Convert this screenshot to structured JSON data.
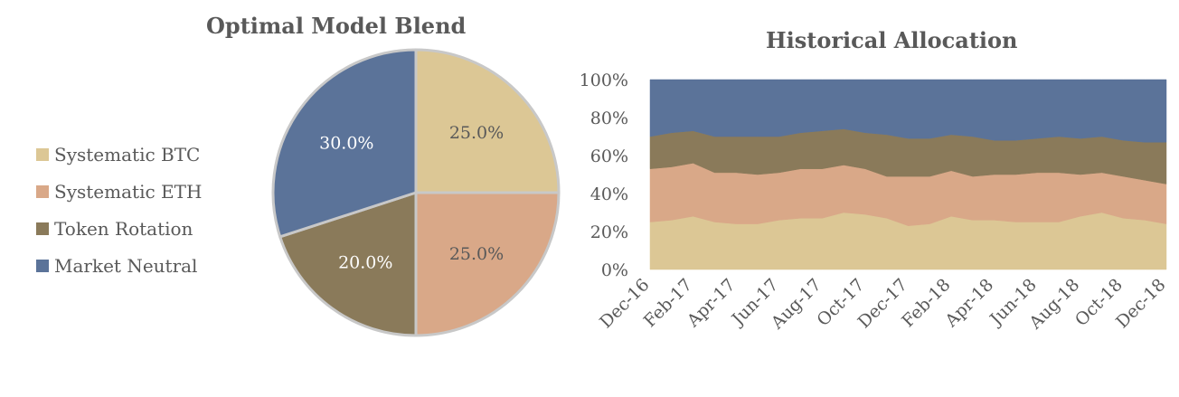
{
  "chart_data": [
    {
      "type": "pie",
      "title": "Optimal Model Blend",
      "legend_placement": "left",
      "categories": [
        "Systematic BTC",
        "Systematic ETH",
        "Token Rotation",
        "Market Neutral"
      ],
      "values": [
        25.0,
        25.0,
        20.0,
        30.0
      ],
      "data_labels": [
        "25.0%",
        "25.0%",
        "20.0%",
        "30.0%"
      ],
      "colors": [
        "#dcc795",
        "#d9a888",
        "#8a7a5a",
        "#5b7399"
      ]
    },
    {
      "type": "area",
      "stacked": "percent",
      "title": "Historical Allocation",
      "grid": false,
      "legend": "none",
      "x_tick_labels": [
        "Dec-16",
        "Feb-17",
        "Apr-17",
        "Jun-17",
        "Aug-17",
        "Oct-17",
        "Dec-17",
        "Feb-18",
        "Apr-18",
        "Jun-18",
        "Aug-18",
        "Oct-18",
        "Dec-18"
      ],
      "y_tick_labels": [
        "0%",
        "20%",
        "40%",
        "60%",
        "80%",
        "100%"
      ],
      "ylim": [
        0,
        100
      ],
      "x": [
        "Dec-16",
        "Jan-17",
        "Feb-17",
        "Mar-17",
        "Apr-17",
        "May-17",
        "Jun-17",
        "Jul-17",
        "Aug-17",
        "Sep-17",
        "Oct-17",
        "Nov-17",
        "Dec-17",
        "Jan-18",
        "Feb-18",
        "Mar-18",
        "Apr-18",
        "May-18",
        "Jun-18",
        "Jul-18",
        "Aug-18",
        "Sep-18",
        "Oct-18",
        "Nov-18",
        "Dec-18"
      ],
      "series": [
        {
          "color": "#dcc795",
          "values": [
            25,
            26,
            28,
            25,
            24,
            24,
            26,
            27,
            27,
            30,
            29,
            27,
            23,
            24,
            28,
            26,
            26,
            25,
            25,
            25,
            28,
            30,
            27,
            26,
            24
          ]
        },
        {
          "color": "#d9a888",
          "values": [
            28,
            28,
            28,
            26,
            27,
            26,
            25,
            26,
            26,
            25,
            24,
            22,
            26,
            25,
            24,
            23,
            24,
            25,
            26,
            26,
            22,
            21,
            22,
            21,
            21
          ]
        },
        {
          "color": "#8a7a5a",
          "values": [
            17,
            18,
            17,
            19,
            19,
            20,
            19,
            19,
            20,
            19,
            19,
            22,
            20,
            20,
            19,
            21,
            18,
            18,
            18,
            19,
            19,
            19,
            19,
            20,
            22
          ]
        },
        {
          "color": "#5b7399",
          "values": [
            30,
            28,
            27,
            30,
            30,
            30,
            30,
            28,
            27,
            26,
            28,
            29,
            31,
            31,
            29,
            30,
            32,
            32,
            31,
            30,
            31,
            30,
            32,
            33,
            33
          ]
        }
      ]
    }
  ]
}
